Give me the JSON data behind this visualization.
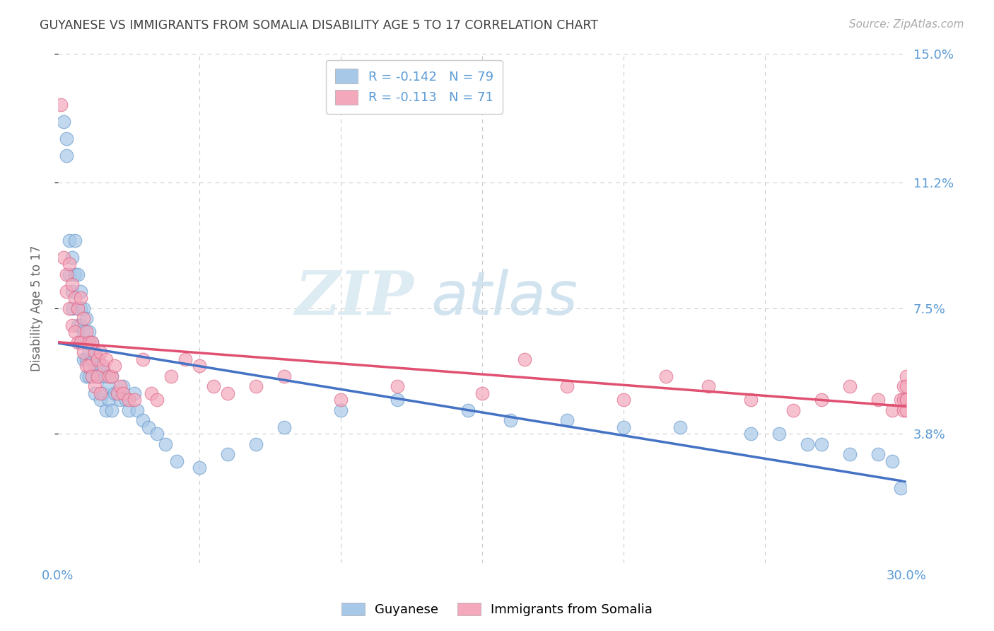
{
  "title": "GUYANESE VS IMMIGRANTS FROM SOMALIA DISABILITY AGE 5 TO 17 CORRELATION CHART",
  "source": "Source: ZipAtlas.com",
  "ylabel": "Disability Age 5 to 17",
  "xlim": [
    0,
    0.3
  ],
  "ylim": [
    0,
    0.15
  ],
  "yticks": [
    0.038,
    0.075,
    0.112,
    0.15
  ],
  "ytick_labels": [
    "3.8%",
    "7.5%",
    "11.2%",
    "15.0%"
  ],
  "blue_R": -0.142,
  "blue_N": 79,
  "pink_R": -0.113,
  "pink_N": 71,
  "blue_color": "#a8c8e8",
  "pink_color": "#f4a8bc",
  "blue_line_color": "#4472c4",
  "pink_line_color": "#e05070",
  "legend_label_blue": "Guyanese",
  "legend_label_pink": "Immigrants from Somalia",
  "watermark_zip": "ZIP",
  "watermark_atlas": "atlas",
  "background_color": "#ffffff",
  "grid_color": "#cccccc",
  "axis_label_color": "#5b9bd5",
  "title_color": "#404040",
  "blue_scatter_x": [
    0.002,
    0.003,
    0.003,
    0.004,
    0.004,
    0.005,
    0.005,
    0.005,
    0.006,
    0.006,
    0.007,
    0.007,
    0.007,
    0.008,
    0.008,
    0.008,
    0.008,
    0.009,
    0.009,
    0.009,
    0.009,
    0.01,
    0.01,
    0.01,
    0.01,
    0.011,
    0.011,
    0.011,
    0.012,
    0.012,
    0.012,
    0.013,
    0.013,
    0.013,
    0.014,
    0.014,
    0.015,
    0.015,
    0.015,
    0.016,
    0.016,
    0.017,
    0.017,
    0.018,
    0.018,
    0.019,
    0.019,
    0.02,
    0.021,
    0.022,
    0.023,
    0.024,
    0.025,
    0.027,
    0.028,
    0.03,
    0.032,
    0.035,
    0.038,
    0.042,
    0.05,
    0.06,
    0.07,
    0.08,
    0.1,
    0.12,
    0.145,
    0.16,
    0.18,
    0.2,
    0.22,
    0.245,
    0.255,
    0.265,
    0.27,
    0.28,
    0.29,
    0.295,
    0.298
  ],
  "blue_scatter_y": [
    0.13,
    0.125,
    0.12,
    0.095,
    0.085,
    0.09,
    0.08,
    0.075,
    0.095,
    0.085,
    0.085,
    0.075,
    0.07,
    0.08,
    0.075,
    0.07,
    0.065,
    0.075,
    0.068,
    0.065,
    0.06,
    0.072,
    0.065,
    0.06,
    0.055,
    0.068,
    0.062,
    0.055,
    0.065,
    0.06,
    0.055,
    0.062,
    0.057,
    0.05,
    0.06,
    0.055,
    0.058,
    0.055,
    0.048,
    0.057,
    0.05,
    0.055,
    0.045,
    0.052,
    0.048,
    0.055,
    0.045,
    0.05,
    0.05,
    0.048,
    0.052,
    0.048,
    0.045,
    0.05,
    0.045,
    0.042,
    0.04,
    0.038,
    0.035,
    0.03,
    0.028,
    0.032,
    0.035,
    0.04,
    0.045,
    0.048,
    0.045,
    0.042,
    0.042,
    0.04,
    0.04,
    0.038,
    0.038,
    0.035,
    0.035,
    0.032,
    0.032,
    0.03,
    0.022
  ],
  "pink_scatter_x": [
    0.001,
    0.002,
    0.003,
    0.003,
    0.004,
    0.004,
    0.005,
    0.005,
    0.006,
    0.006,
    0.007,
    0.007,
    0.008,
    0.008,
    0.009,
    0.009,
    0.01,
    0.01,
    0.011,
    0.011,
    0.012,
    0.012,
    0.013,
    0.013,
    0.014,
    0.014,
    0.015,
    0.015,
    0.016,
    0.017,
    0.018,
    0.019,
    0.02,
    0.021,
    0.022,
    0.023,
    0.025,
    0.027,
    0.03,
    0.033,
    0.035,
    0.04,
    0.045,
    0.05,
    0.055,
    0.06,
    0.07,
    0.08,
    0.1,
    0.12,
    0.15,
    0.165,
    0.18,
    0.2,
    0.215,
    0.23,
    0.245,
    0.26,
    0.27,
    0.28,
    0.29,
    0.295,
    0.298,
    0.299,
    0.299,
    0.299,
    0.3,
    0.3,
    0.3,
    0.3,
    0.3
  ],
  "pink_scatter_y": [
    0.135,
    0.09,
    0.085,
    0.08,
    0.088,
    0.075,
    0.082,
    0.07,
    0.078,
    0.068,
    0.075,
    0.065,
    0.078,
    0.065,
    0.072,
    0.062,
    0.068,
    0.058,
    0.065,
    0.058,
    0.065,
    0.055,
    0.062,
    0.052,
    0.06,
    0.055,
    0.062,
    0.05,
    0.058,
    0.06,
    0.055,
    0.055,
    0.058,
    0.05,
    0.052,
    0.05,
    0.048,
    0.048,
    0.06,
    0.05,
    0.048,
    0.055,
    0.06,
    0.058,
    0.052,
    0.05,
    0.052,
    0.055,
    0.048,
    0.052,
    0.05,
    0.06,
    0.052,
    0.048,
    0.055,
    0.052,
    0.048,
    0.045,
    0.048,
    0.052,
    0.048,
    0.045,
    0.048,
    0.052,
    0.048,
    0.045,
    0.048,
    0.055,
    0.048,
    0.052,
    0.045
  ]
}
